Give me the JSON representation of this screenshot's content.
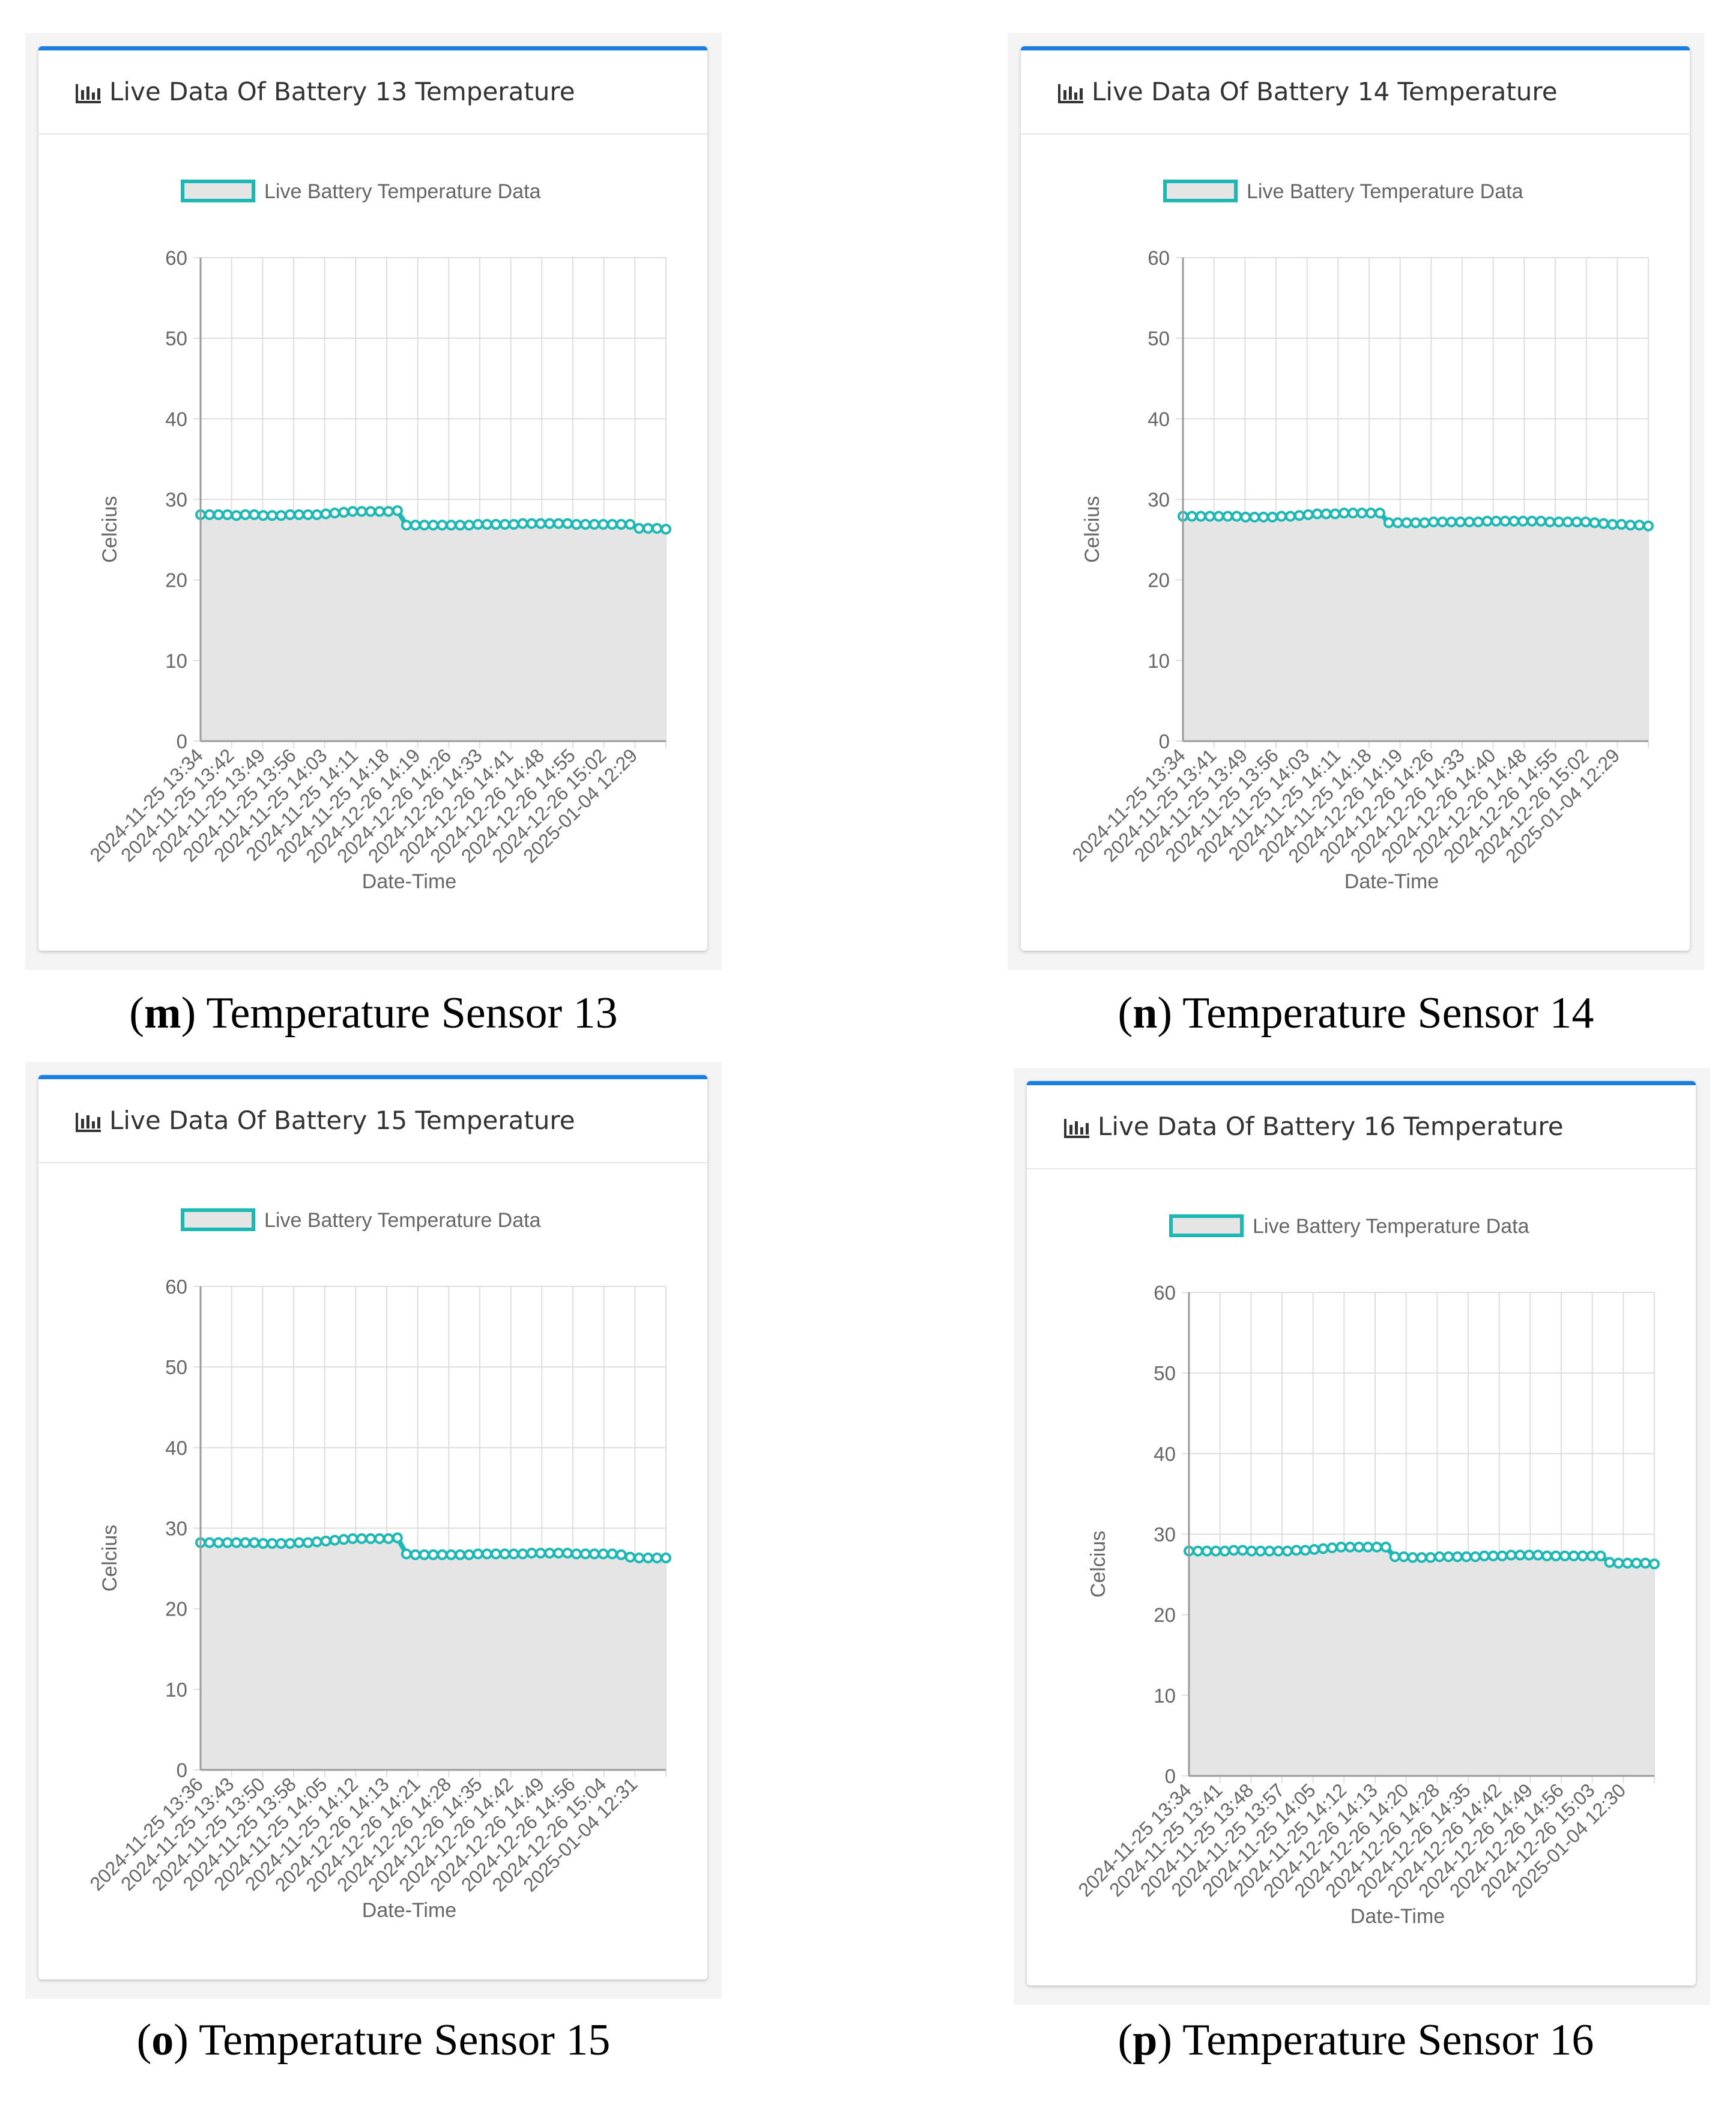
{
  "colors": {
    "line": "#1eb8b4",
    "fill": "#e5e5e5",
    "header_accent": "#1a7fe0"
  },
  "icon": "bar-chart-icon",
  "panels": [
    {
      "letter": "m",
      "caption": "Temperature Sensor 13",
      "title": "Live Data Of Battery 13 Temperature",
      "chart_data": {
        "type": "area",
        "title": "Live Data Of Battery 13 Temperature",
        "legend": "Live Battery Temperature Data",
        "xlabel": "Date-Time",
        "ylabel": "Celcius",
        "ylim": [
          0,
          60
        ],
        "yticks": [
          0,
          10,
          20,
          30,
          40,
          50,
          60
        ],
        "xticks": [
          "2024-11-25 13:34",
          "2024-11-25 13:42",
          "2024-11-25 13:49",
          "2024-11-25 13:56",
          "2024-11-25 14:03",
          "2024-11-25 14:11",
          "2024-11-25 14:18",
          "2024-12-26 14:19",
          "2024-12-26 14:26",
          "2024-12-26 14:33",
          "2024-12-26 14:41",
          "2024-12-26 14:48",
          "2024-12-26 14:55",
          "2024-12-26 15:02",
          "2025-01-04 12:29"
        ],
        "values": [
          28.1,
          28.1,
          28.1,
          28.1,
          28.0,
          28.1,
          28.1,
          28.0,
          28.0,
          28.0,
          28.1,
          28.1,
          28.1,
          28.1,
          28.2,
          28.3,
          28.4,
          28.5,
          28.5,
          28.5,
          28.5,
          28.5,
          28.6,
          26.8,
          26.8,
          26.8,
          26.8,
          26.8,
          26.8,
          26.8,
          26.8,
          26.9,
          26.9,
          26.9,
          26.9,
          26.9,
          27.0,
          27.0,
          27.0,
          27.0,
          27.0,
          27.0,
          26.9,
          26.9,
          26.9,
          26.9,
          26.9,
          26.9,
          26.9,
          26.4,
          26.4,
          26.4,
          26.3
        ]
      }
    },
    {
      "letter": "n",
      "caption": "Temperature Sensor 14",
      "title": "Live Data Of Battery 14 Temperature",
      "chart_data": {
        "type": "area",
        "title": "Live Data Of Battery 14 Temperature",
        "legend": "Live Battery Temperature Data",
        "xlabel": "Date-Time",
        "ylabel": "Celcius",
        "ylim": [
          0,
          60
        ],
        "yticks": [
          0,
          10,
          20,
          30,
          40,
          50,
          60
        ],
        "xticks": [
          "2024-11-25 13:34",
          "2024-11-25 13:41",
          "2024-11-25 13:49",
          "2024-11-25 13:56",
          "2024-11-25 14:03",
          "2024-11-25 14:11",
          "2024-11-25 14:18",
          "2024-12-26 14:19",
          "2024-12-26 14:26",
          "2024-12-26 14:33",
          "2024-12-26 14:40",
          "2024-12-26 14:48",
          "2024-12-26 14:55",
          "2024-12-26 15:02",
          "2025-01-04 12:29"
        ],
        "values": [
          27.9,
          27.9,
          27.9,
          27.9,
          27.9,
          27.9,
          27.9,
          27.8,
          27.8,
          27.8,
          27.8,
          27.9,
          27.9,
          28.0,
          28.1,
          28.2,
          28.2,
          28.2,
          28.3,
          28.3,
          28.3,
          28.3,
          28.3,
          27.1,
          27.1,
          27.1,
          27.1,
          27.1,
          27.2,
          27.2,
          27.2,
          27.2,
          27.2,
          27.2,
          27.3,
          27.3,
          27.3,
          27.3,
          27.3,
          27.3,
          27.3,
          27.2,
          27.2,
          27.2,
          27.2,
          27.2,
          27.1,
          27.0,
          26.9,
          26.9,
          26.8,
          26.8,
          26.7
        ]
      }
    },
    {
      "letter": "o",
      "caption": "Temperature Sensor 15",
      "title": "Live Data Of Battery 15 Temperature",
      "chart_data": {
        "type": "area",
        "title": "Live Data Of Battery 15 Temperature",
        "legend": "Live Battery Temperature Data",
        "xlabel": "Date-Time",
        "ylabel": "Celcius",
        "ylim": [
          0,
          60
        ],
        "yticks": [
          0,
          10,
          20,
          30,
          40,
          50,
          60
        ],
        "xticks": [
          "2024-11-25 13:36",
          "2024-11-25 13:43",
          "2024-11-25 13:50",
          "2024-11-25 13:58",
          "2024-11-25 14:05",
          "2024-11-25 14:12",
          "2024-12-26 14:13",
          "2024-12-26 14:21",
          "2024-12-26 14:28",
          "2024-12-26 14:35",
          "2024-12-26 14:42",
          "2024-12-26 14:49",
          "2024-12-26 14:56",
          "2024-12-26 15:04",
          "2025-01-04 12:31"
        ],
        "values": [
          28.2,
          28.2,
          28.2,
          28.2,
          28.2,
          28.2,
          28.2,
          28.1,
          28.1,
          28.1,
          28.1,
          28.2,
          28.2,
          28.3,
          28.4,
          28.5,
          28.6,
          28.7,
          28.7,
          28.7,
          28.7,
          28.7,
          28.8,
          26.8,
          26.7,
          26.7,
          26.7,
          26.7,
          26.7,
          26.7,
          26.7,
          26.8,
          26.8,
          26.8,
          26.8,
          26.8,
          26.8,
          26.9,
          26.9,
          26.9,
          26.9,
          26.9,
          26.8,
          26.8,
          26.8,
          26.8,
          26.8,
          26.7,
          26.4,
          26.3,
          26.3,
          26.3,
          26.3
        ]
      }
    },
    {
      "letter": "p",
      "caption": "Temperature Sensor 16",
      "title": "Live Data Of Battery 16 Temperature",
      "chart_data": {
        "type": "area",
        "title": "Live Data Of Battery 16 Temperature",
        "legend": "Live Battery Temperature Data",
        "xlabel": "Date-Time",
        "ylabel": "Celcius",
        "ylim": [
          0,
          60
        ],
        "yticks": [
          0,
          10,
          20,
          30,
          40,
          50,
          60
        ],
        "xticks": [
          "2024-11-25 13:34",
          "2024-11-25 13:41",
          "2024-11-25 13:48",
          "2024-11-25 13:57",
          "2024-11-25 14:05",
          "2024-11-25 14:12",
          "2024-12-26 14:13",
          "2024-12-26 14:20",
          "2024-12-26 14:28",
          "2024-12-26 14:35",
          "2024-12-26 14:42",
          "2024-12-26 14:49",
          "2024-12-26 14:56",
          "2024-12-26 15:03",
          "2025-01-04 12:30"
        ],
        "values": [
          27.9,
          27.9,
          27.9,
          27.9,
          27.9,
          28.0,
          28.0,
          27.9,
          27.9,
          27.9,
          27.9,
          27.9,
          28.0,
          28.0,
          28.1,
          28.2,
          28.3,
          28.4,
          28.4,
          28.4,
          28.4,
          28.4,
          28.4,
          27.2,
          27.2,
          27.1,
          27.1,
          27.1,
          27.2,
          27.2,
          27.2,
          27.2,
          27.2,
          27.3,
          27.3,
          27.3,
          27.4,
          27.4,
          27.4,
          27.4,
          27.3,
          27.3,
          27.3,
          27.3,
          27.3,
          27.3,
          27.3,
          26.5,
          26.4,
          26.4,
          26.4,
          26.4,
          26.3
        ]
      }
    }
  ]
}
